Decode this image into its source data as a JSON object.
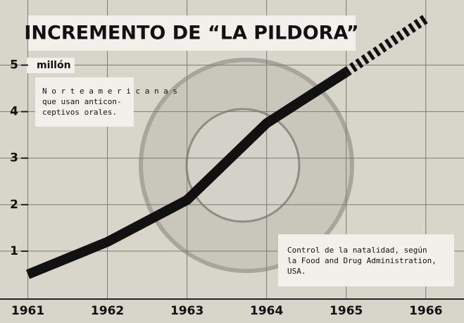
{
  "chart_data": {
    "type": "line",
    "title": "INCREMENTO DE “LA PILDORA”",
    "y_unit": "millón",
    "annotations": [
      [
        "N o r t e a m e r i c a n a s",
        "que usan anticon-",
        "ceptivos orales."
      ],
      [
        "Control de la natalidad, según",
        "la Food and Drug Administration,",
        "USA."
      ]
    ],
    "x": [
      1961,
      1962,
      1963,
      1964,
      1965,
      1966
    ],
    "values": [
      0.5,
      1.2,
      2.1,
      3.75,
      4.85,
      6.0
    ],
    "projected": [
      false,
      false,
      false,
      false,
      false,
      true
    ],
    "color": "#111111",
    "xlim": [
      1960.65,
      1966.48
    ],
    "xticks": [
      1961,
      1962,
      1963,
      1964,
      1965,
      1966
    ],
    "ylim": [
      0,
      6.4
    ],
    "yticks": [
      1,
      2,
      3,
      4,
      5
    ],
    "grid": true
  }
}
